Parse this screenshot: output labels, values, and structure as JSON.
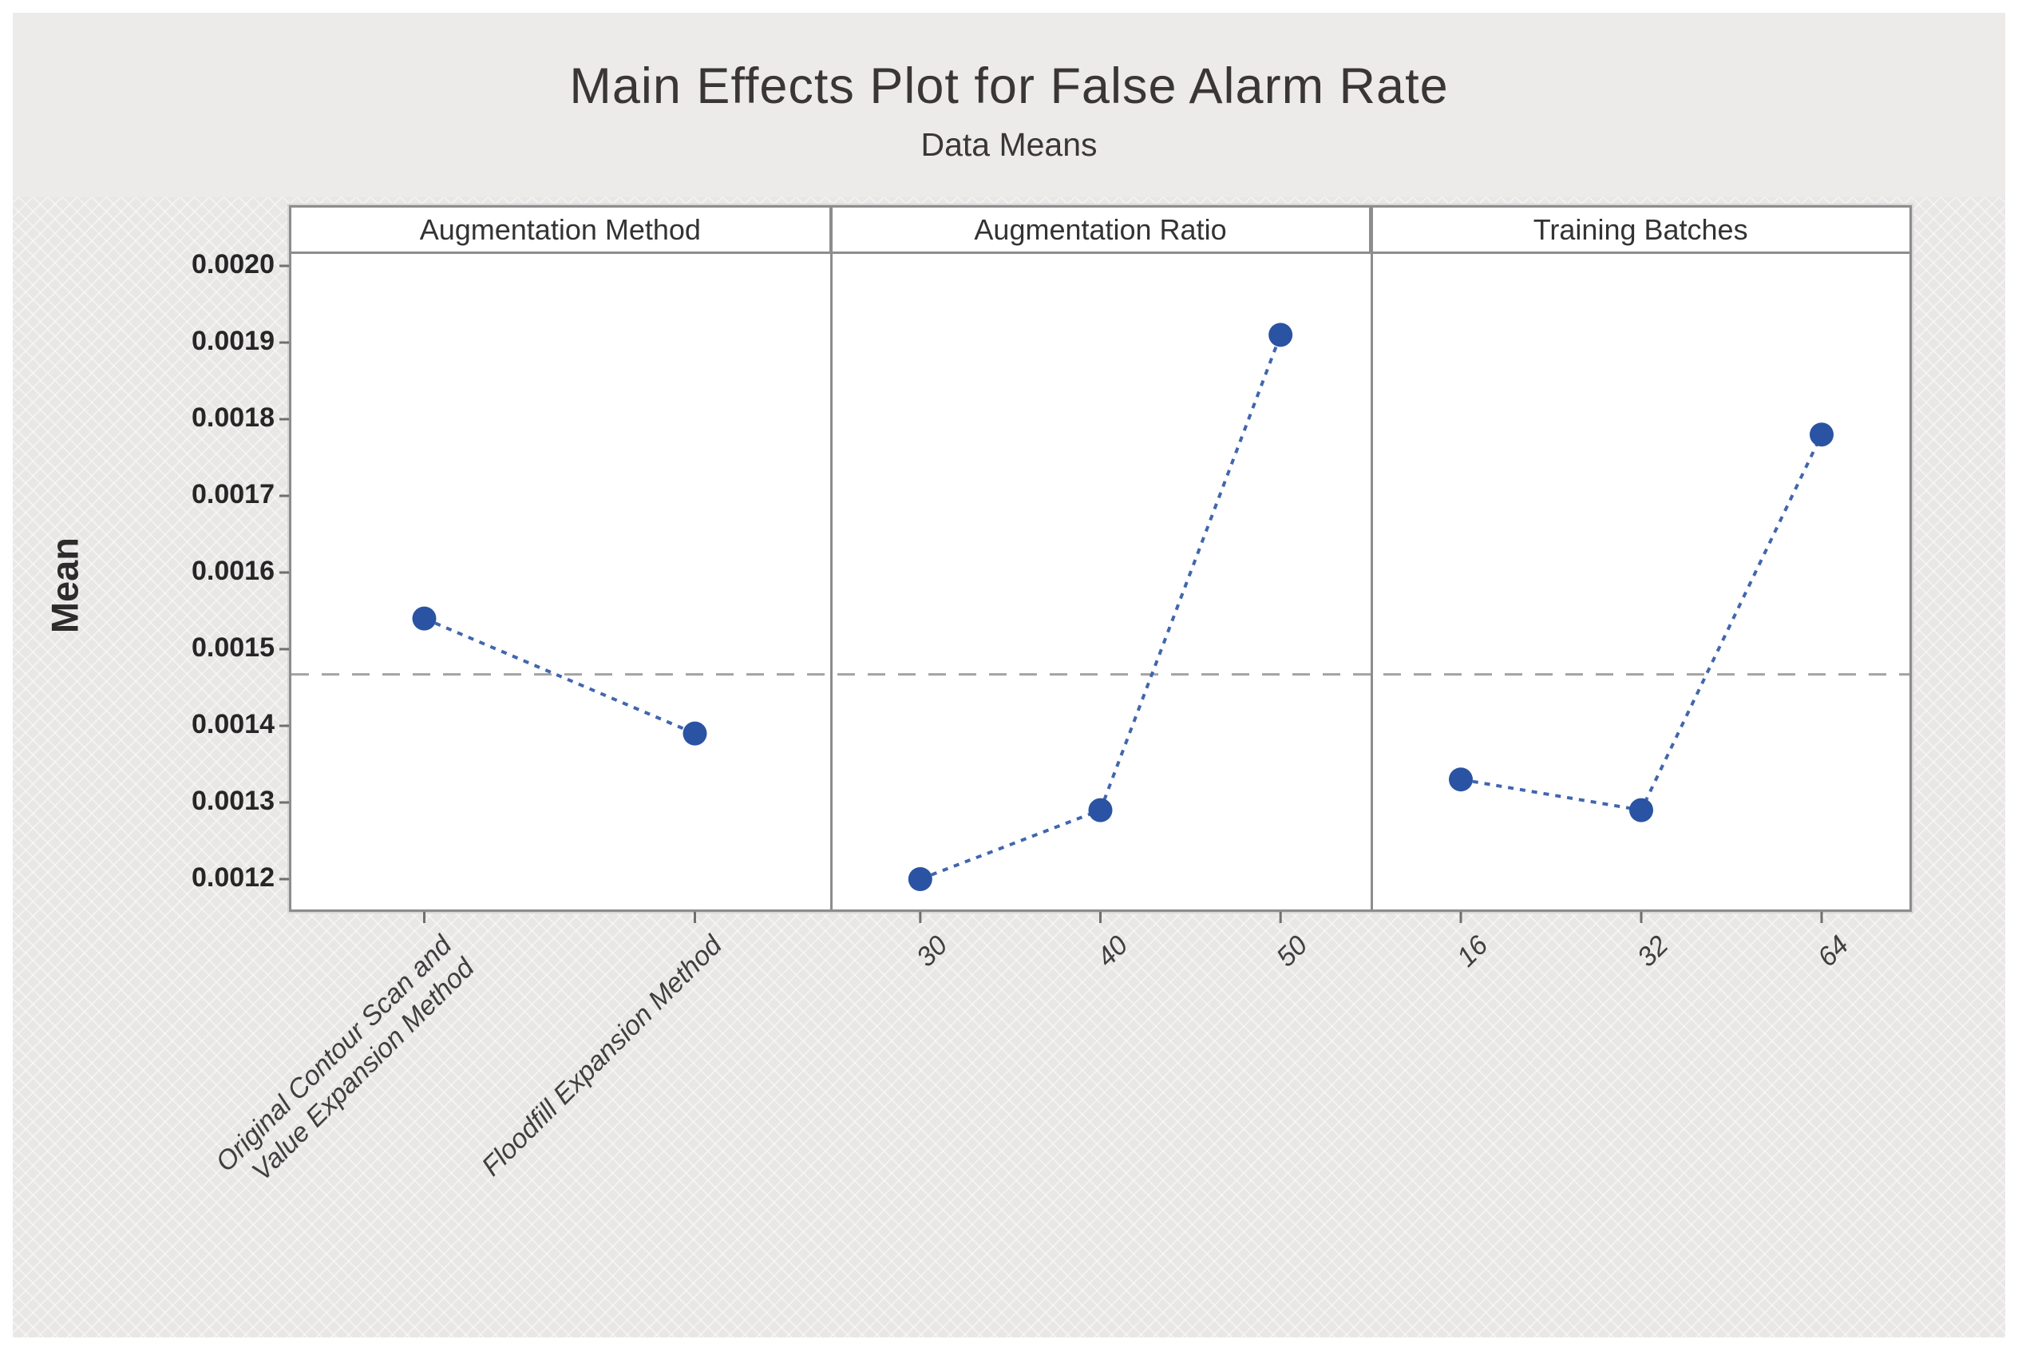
{
  "page": {
    "title": "Main Effects Plot for False Alarm Rate",
    "subtitle": "Data Means"
  },
  "chart_data": {
    "type": "line",
    "title": "Main Effects Plot for False Alarm Rate",
    "subtitle": "Data Means",
    "ylabel": "Mean",
    "ylim": [
      0.00116,
      0.00202
    ],
    "yticks": [
      0.0012,
      0.0013,
      0.0014,
      0.0015,
      0.0016,
      0.0017,
      0.0018,
      0.0019,
      0.002
    ],
    "grid": false,
    "reference_line_value": 0.001467,
    "panels": [
      {
        "header": "Augmentation Method",
        "categories": [
          [
            "Original Contour Scan and",
            "Value Expansion Method"
          ],
          [
            "Floodfill Expansion Method"
          ]
        ],
        "values": [
          0.00154,
          0.00139
        ]
      },
      {
        "header": "Augmentation Ratio",
        "categories": [
          [
            "30"
          ],
          [
            "40"
          ],
          [
            "50"
          ]
        ],
        "values": [
          0.0012,
          0.00129,
          0.00191
        ]
      },
      {
        "header": "Training Batches",
        "categories": [
          [
            "16"
          ],
          [
            "32"
          ],
          [
            "64"
          ]
        ],
        "values": [
          0.00133,
          0.00129,
          0.00178
        ]
      }
    ],
    "colors": {
      "marker": "#2b53a3",
      "segment_line": "#4166ae",
      "reference_line": "#a3a3a3",
      "frame_border": "#8d8d8d",
      "title_text": "#3a3637",
      "band_bg": "#ecebe9",
      "main_bg": "#e9e6e6"
    }
  }
}
